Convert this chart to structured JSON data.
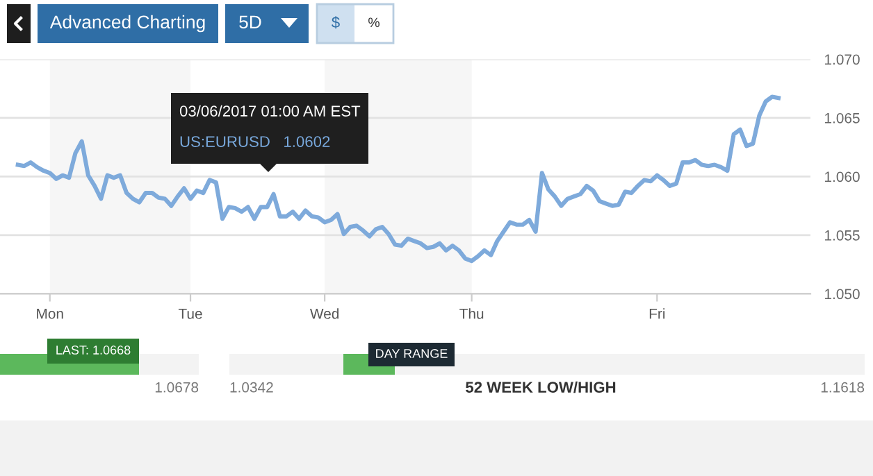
{
  "chart_data": {
    "type": "line",
    "categories": [
      null,
      null,
      null,
      null,
      null,
      "Mon",
      null,
      null,
      null,
      null,
      null,
      null,
      null,
      null,
      null,
      null,
      null,
      null,
      null,
      null,
      null,
      null,
      null,
      null,
      null,
      null,
      null,
      "Tue",
      null,
      null,
      null,
      null,
      null,
      null,
      null,
      null,
      null,
      null,
      null,
      null,
      null,
      null,
      null,
      null,
      null,
      null,
      null,
      null,
      "Wed",
      null,
      null,
      null,
      null,
      null,
      null,
      null,
      null,
      null,
      null,
      null,
      null,
      null,
      null,
      null,
      null,
      null,
      null,
      null,
      null,
      null,
      null,
      "Thu",
      null,
      null,
      null,
      null,
      null,
      null,
      null,
      null,
      null,
      null,
      null,
      null,
      null,
      null,
      null,
      null,
      null,
      null,
      null,
      null,
      null,
      null,
      null,
      null,
      null,
      null,
      null,
      null,
      "Fri",
      null,
      null,
      null,
      null,
      null,
      null,
      null,
      null,
      null,
      null,
      null,
      null,
      null,
      null,
      null,
      null,
      null,
      null,
      null
    ],
    "series": [
      {
        "color": "#7eaadb",
        "values": [
          1.061,
          1.0609,
          1.0612,
          1.0608,
          1.0605,
          1.0603,
          1.0598,
          1.0601,
          1.0599,
          1.062,
          1.063,
          1.0601,
          1.0592,
          1.0581,
          1.0601,
          1.0599,
          1.0601,
          1.0586,
          1.0581,
          1.0578,
          1.0586,
          1.0586,
          1.0582,
          1.0581,
          1.0575,
          1.0583,
          1.059,
          1.0581,
          1.0588,
          1.0586,
          1.0597,
          1.0595,
          1.0564,
          1.0574,
          1.0573,
          1.057,
          1.0574,
          1.0564,
          1.0574,
          1.0574,
          1.0585,
          1.0566,
          1.0566,
          1.057,
          1.0564,
          1.0571,
          1.0566,
          1.0565,
          1.0561,
          1.0563,
          1.0568,
          1.0551,
          1.0557,
          1.0558,
          1.0554,
          1.0549,
          1.0555,
          1.0557,
          1.0551,
          1.0542,
          1.0541,
          1.0547,
          1.0545,
          1.0543,
          1.0539,
          1.054,
          1.0543,
          1.0537,
          1.0541,
          1.0537,
          1.053,
          1.0528,
          1.0532,
          1.0537,
          1.0533,
          1.0545,
          1.0553,
          1.0561,
          1.0559,
          1.0559,
          1.0563,
          1.0553,
          1.0603,
          1.0589,
          1.0583,
          1.0575,
          1.0581,
          1.0583,
          1.0585,
          1.0592,
          1.0588,
          1.0579,
          1.0577,
          1.0575,
          1.0576,
          1.0587,
          1.0586,
          1.0592,
          1.0597,
          1.0596,
          1.0601,
          1.0597,
          1.0592,
          1.0594,
          1.0612,
          1.0612,
          1.0614,
          1.061,
          1.0609,
          1.061,
          1.0608,
          1.0605,
          1.0636,
          1.064,
          1.0626,
          1.0628,
          1.0652,
          1.0664,
          1.0668,
          1.0667
        ]
      }
    ],
    "ylim": [
      1.05,
      1.07
    ],
    "yticks": [
      {
        "value": 1.05,
        "label": "1.050"
      },
      {
        "value": 1.055,
        "label": "1.055"
      },
      {
        "value": 1.06,
        "label": "1.060"
      },
      {
        "value": 1.065,
        "label": "1.065"
      },
      {
        "value": 1.07,
        "label": "1.070"
      }
    ],
    "grid": "y",
    "bands": [
      {
        "axis": "x",
        "from": "Mon",
        "to": "Tue",
        "color": "#f6f6f6"
      },
      {
        "axis": "x",
        "from": "Wed",
        "to": "Thu",
        "color": "#f6f6f6"
      }
    ],
    "annotations": [
      "Advanced Charting",
      "5D",
      "$",
      "%",
      "03/06/2017 01:00 AM EST",
      "US:EURUSD   1.0602",
      "LAST: 1.0668",
      "1.0678",
      "1.0342",
      "52 WEEK LOW/HIGH",
      "1.1618",
      "DAY RANGE"
    ]
  }
}
